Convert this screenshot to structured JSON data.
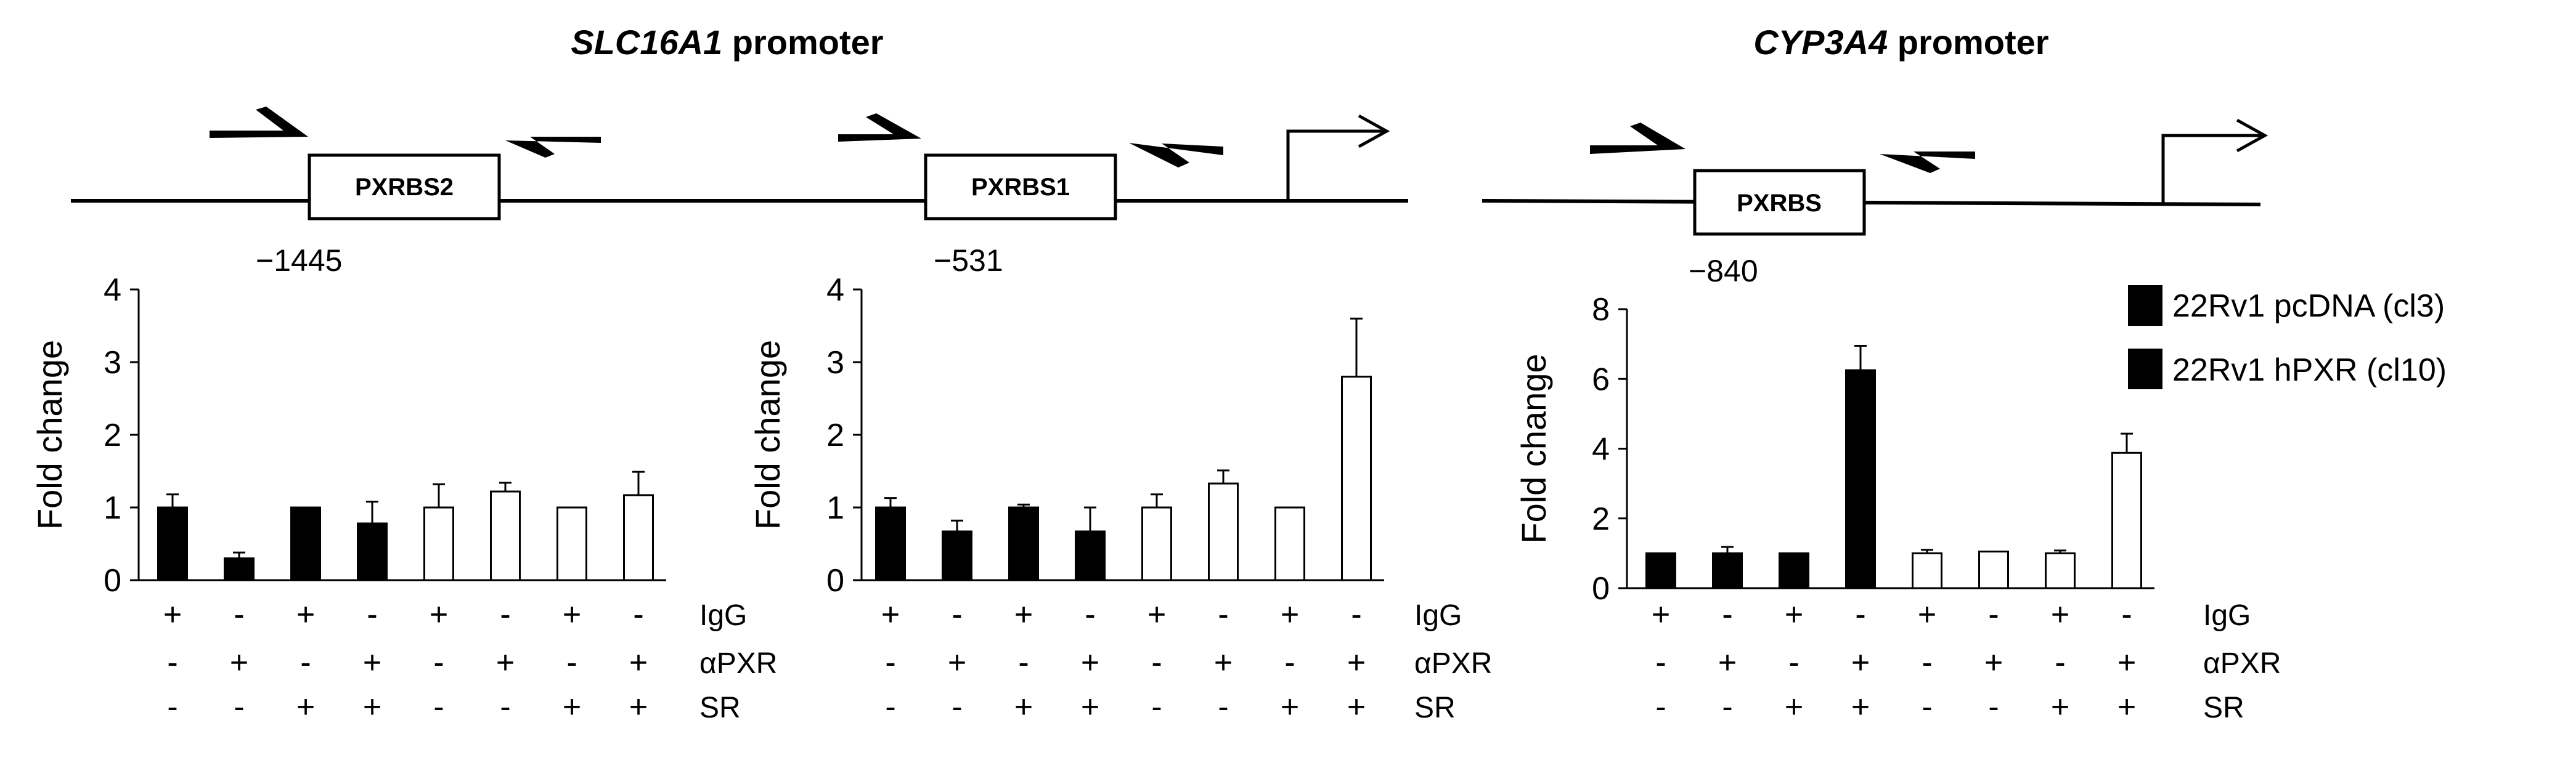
{
  "figure": {
    "panels": [
      {
        "title_gene": "SLC16A1",
        "title_rest": " promoter",
        "sites": [
          {
            "label": "PXRBS2",
            "position": "−1445"
          },
          {
            "label": "PXRBS1",
            "position": "−531"
          }
        ]
      },
      {
        "title_gene": "CYP3A4",
        "title_rest": " promoter",
        "sites": [
          {
            "label": "PXRBS",
            "position": "−840"
          }
        ]
      }
    ],
    "legend": [
      {
        "label": "22Rv1 pcDNA (cl3)",
        "fill": "#000000"
      },
      {
        "label": "22Rv1 hPXR (cl10)",
        "fill": "#ffffff"
      }
    ],
    "row_labels": [
      "IgG",
      "αPXR",
      "SR"
    ],
    "conditions": {
      "IgG": [
        "+",
        "-",
        "+",
        "-",
        "+",
        "-",
        "+",
        "-"
      ],
      "aPXR": [
        "-",
        "+",
        "-",
        "+",
        "-",
        "+",
        "-",
        "+"
      ],
      "SR": [
        "-",
        "-",
        "+",
        "+",
        "-",
        "-",
        "+",
        "+"
      ]
    },
    "colors": {
      "filled": "#000000",
      "open": "#ffffff",
      "line": "#000000"
    }
  },
  "chart_data": [
    {
      "type": "bar",
      "ylabel": "Fold change",
      "ylim": [
        0,
        4
      ],
      "yticks": [
        0,
        1,
        2,
        3,
        4
      ],
      "series_groups": [
        "22Rv1 pcDNA (cl3)",
        "22Rv1 pcDNA (cl3)",
        "22Rv1 pcDNA (cl3)",
        "22Rv1 pcDNA (cl3)",
        "22Rv1 hPXR (cl10)",
        "22Rv1 hPXR (cl10)",
        "22Rv1 hPXR (cl10)",
        "22Rv1 hPXR (cl10)"
      ],
      "values": [
        1.0,
        0.3,
        1.0,
        0.78,
        1.0,
        1.22,
        1.0,
        1.17
      ],
      "errors": [
        0.18,
        0.08,
        0.0,
        0.3,
        0.32,
        0.12,
        0.0,
        0.32
      ]
    },
    {
      "type": "bar",
      "ylabel": "Fold change",
      "ylim": [
        0,
        4
      ],
      "yticks": [
        0,
        1,
        2,
        3,
        4
      ],
      "series_groups": [
        "22Rv1 pcDNA (cl3)",
        "22Rv1 pcDNA (cl3)",
        "22Rv1 pcDNA (cl3)",
        "22Rv1 pcDNA (cl3)",
        "22Rv1 hPXR (cl10)",
        "22Rv1 hPXR (cl10)",
        "22Rv1 hPXR (cl10)",
        "22Rv1 hPXR (cl10)"
      ],
      "values": [
        1.0,
        0.67,
        1.0,
        0.67,
        1.0,
        1.33,
        1.0,
        2.8
      ],
      "errors": [
        0.13,
        0.15,
        0.04,
        0.33,
        0.18,
        0.18,
        0.0,
        0.8
      ]
    },
    {
      "type": "bar",
      "ylabel": "Fold change",
      "ylim": [
        0,
        8
      ],
      "yticks": [
        0,
        2,
        4,
        6,
        8
      ],
      "series_groups": [
        "22Rv1 pcDNA (cl3)",
        "22Rv1 pcDNA (cl3)",
        "22Rv1 pcDNA (cl3)",
        "22Rv1 pcDNA (cl3)",
        "22Rv1 hPXR (cl10)",
        "22Rv1 hPXR (cl10)",
        "22Rv1 hPXR (cl10)",
        "22Rv1 hPXR (cl10)"
      ],
      "values": [
        1.0,
        1.0,
        1.0,
        6.25,
        1.0,
        1.05,
        1.0,
        3.88
      ],
      "errors": [
        0.0,
        0.18,
        0.0,
        0.7,
        0.1,
        0.0,
        0.08,
        0.55
      ]
    }
  ]
}
